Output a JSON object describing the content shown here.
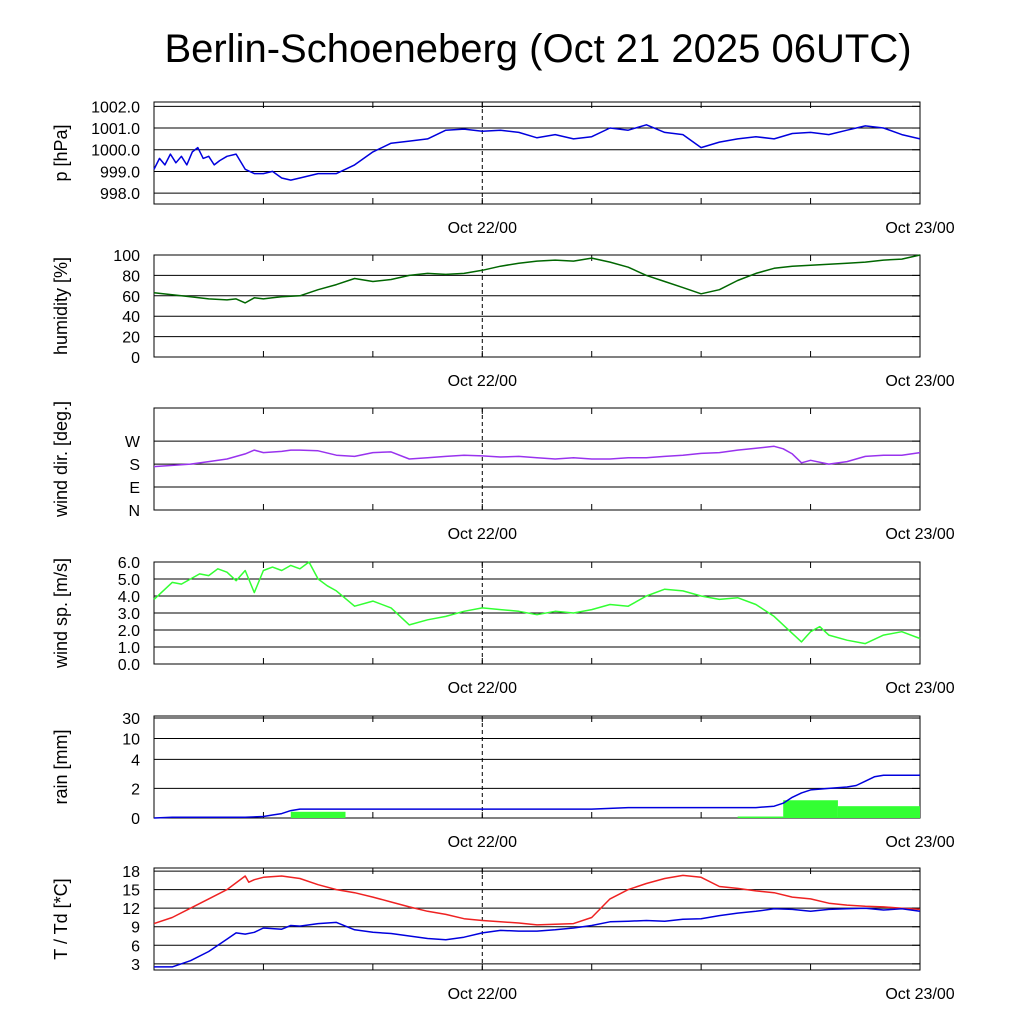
{
  "colors": {
    "pressure": "#0000dd",
    "humidity": "#006600",
    "wind_dir": "#9933ee",
    "wind_speed": "#33ff33",
    "rain_bar": "#33ff33",
    "rain_line": "#0000dd",
    "temperature": "#ee2222",
    "dewpoint": "#0000dd"
  },
  "chart_data": {
    "title": "Berlin-Schoeneberg (Oct 21 2025 06UTC)",
    "type": "line",
    "x_unit": "hours since Oct 21 06UTC",
    "xlim": [
      0,
      42
    ],
    "x_ticks": [
      {
        "x": 18,
        "label": "Oct 22/00"
      },
      {
        "x": 42,
        "label": "Oct 23/00"
      }
    ],
    "panels": [
      {
        "id": "pressure",
        "type": "line",
        "ylabel": "p [hPa]",
        "ylim": [
          997.5,
          1002.2
        ],
        "yticks": [
          998.0,
          999.0,
          1000.0,
          1001.0,
          1002.0
        ],
        "ytick_labels": [
          "998.0",
          "999.0",
          "1000.0",
          "1001.0",
          "1002.0"
        ],
        "series": [
          {
            "name": "pressure",
            "color_key": "pressure",
            "x": [
              0,
              0.3,
              0.6,
              0.9,
              1.2,
              1.5,
              1.8,
              2.1,
              2.4,
              2.7,
              3,
              3.3,
              3.6,
              4,
              4.5,
              5,
              5.5,
              6,
              6.5,
              7,
              7.5,
              8,
              9,
              10,
              11,
              12,
              13,
              14,
              15,
              16,
              17,
              18,
              19,
              20,
              21,
              22,
              23,
              24,
              25,
              26,
              27,
              28,
              29,
              30,
              31,
              32,
              33,
              34,
              35,
              36,
              37,
              38,
              39,
              40,
              41,
              42
            ],
            "y": [
              999.1,
              999.6,
              999.3,
              999.8,
              999.4,
              999.7,
              999.3,
              999.9,
              1000.1,
              999.6,
              999.7,
              999.3,
              999.5,
              999.7,
              999.8,
              999.1,
              998.9,
              998.9,
              999.0,
              998.7,
              998.6,
              998.7,
              998.9,
              998.9,
              999.3,
              999.9,
              1000.3,
              1000.4,
              1000.5,
              1000.9,
              1000.95,
              1000.85,
              1000.9,
              1000.8,
              1000.55,
              1000.7,
              1000.5,
              1000.6,
              1001.0,
              1000.9,
              1001.15,
              1000.8,
              1000.7,
              1000.1,
              1000.35,
              1000.5,
              1000.6,
              1000.5,
              1000.75,
              1000.8,
              1000.7,
              1000.9,
              1001.1,
              1001.0,
              1000.7,
              1000.5
            ]
          }
        ]
      },
      {
        "id": "humidity",
        "type": "line",
        "ylabel": "humidity [%]",
        "ylim": [
          0,
          100
        ],
        "yticks": [
          0,
          20,
          40,
          60,
          80,
          100
        ],
        "ytick_labels": [
          "0",
          "20",
          "40",
          "60",
          "80",
          "100"
        ],
        "series": [
          {
            "name": "humidity",
            "color_key": "humidity",
            "x": [
              0,
              1,
              2,
              3,
              4,
              4.5,
              5,
              5.5,
              6,
              6.5,
              7,
              8,
              9,
              10,
              11,
              12,
              13,
              14,
              15,
              16,
              17,
              18,
              19,
              20,
              21,
              22,
              23,
              24,
              25,
              26,
              27,
              28,
              29,
              30,
              31,
              32,
              33,
              34,
              35,
              36,
              37,
              38,
              39,
              40,
              41,
              42
            ],
            "y": [
              63,
              61,
              59,
              57,
              56,
              57,
              53,
              58,
              57,
              58,
              59,
              60,
              66,
              71,
              77,
              74,
              76,
              80,
              82,
              81,
              82,
              85,
              89,
              92,
              94,
              95,
              94,
              97,
              93,
              88,
              80,
              74,
              68,
              62,
              66,
              75,
              82,
              87,
              89,
              90,
              91,
              92,
              93,
              95,
              96,
              100
            ]
          }
        ]
      },
      {
        "id": "wind_dir",
        "type": "line",
        "ylabel": "wind dir. [deg.]",
        "ylim": [
          0,
          400
        ],
        "yticks": [
          0,
          90,
          180,
          270
        ],
        "ytick_labels": [
          "N",
          "E",
          "S",
          "W"
        ],
        "series": [
          {
            "name": "wind direction",
            "color_key": "wind_dir",
            "x": [
              0,
              1,
              2,
              3,
              4,
              5,
              5.5,
              6,
              7,
              7.5,
              8,
              9,
              10,
              11,
              12,
              13,
              14,
              15,
              16,
              17,
              18,
              19,
              20,
              21,
              22,
              23,
              24,
              25,
              26,
              27,
              28,
              29,
              30,
              31,
              32,
              33,
              34,
              34.5,
              35,
              35.5,
              36,
              37,
              38,
              39,
              40,
              41,
              42
            ],
            "y": [
              170,
              175,
              180,
              190,
              200,
              220,
              235,
              225,
              230,
              235,
              235,
              232,
              215,
              210,
              225,
              228,
              200,
              205,
              210,
              215,
              212,
              208,
              210,
              205,
              200,
              205,
              200,
              200,
              205,
              205,
              210,
              215,
              222,
              225,
              235,
              242,
              250,
              240,
              220,
              185,
              195,
              180,
              190,
              210,
              215,
              215,
              225
            ]
          }
        ]
      },
      {
        "id": "wind_speed",
        "type": "line",
        "ylabel": "wind sp. [m/s]",
        "ylim": [
          0,
          6
        ],
        "yticks": [
          0,
          1,
          2,
          3,
          4,
          5,
          6
        ],
        "ytick_labels": [
          "0.0",
          "1.0",
          "2.0",
          "3.0",
          "4.0",
          "5.0",
          "6.0"
        ],
        "series": [
          {
            "name": "wind speed",
            "color_key": "wind_speed",
            "x": [
              0,
              0.5,
              1,
              1.5,
              2,
              2.5,
              3,
              3.5,
              4,
              4.5,
              5,
              5.5,
              6,
              6.5,
              7,
              7.5,
              8,
              8.5,
              9,
              9.5,
              10,
              11,
              12,
              13,
              14,
              15,
              16,
              17,
              18,
              19,
              20,
              21,
              22,
              23,
              24,
              25,
              26,
              27,
              28,
              29,
              30,
              31,
              32,
              33,
              34,
              35,
              35.5,
              36,
              36.5,
              37,
              38,
              39,
              40,
              41,
              42
            ],
            "y": [
              3.8,
              4.3,
              4.8,
              4.7,
              5.0,
              5.3,
              5.2,
              5.6,
              5.4,
              4.9,
              5.5,
              4.2,
              5.5,
              5.7,
              5.5,
              5.8,
              5.6,
              6.0,
              5.0,
              4.6,
              4.3,
              3.4,
              3.7,
              3.3,
              2.3,
              2.6,
              2.8,
              3.1,
              3.3,
              3.2,
              3.1,
              2.9,
              3.1,
              3.0,
              3.2,
              3.5,
              3.4,
              4.0,
              4.4,
              4.3,
              4.0,
              3.8,
              3.9,
              3.5,
              2.8,
              1.8,
              1.3,
              1.9,
              2.2,
              1.7,
              1.4,
              1.2,
              1.7,
              1.9,
              1.5
            ]
          }
        ]
      },
      {
        "id": "rain",
        "type": "bar",
        "ylabel": "rain [mm]",
        "ytick_labels": [
          "0",
          "2",
          "4",
          "10",
          "30"
        ],
        "bars": [
          {
            "x0": 7.5,
            "x1": 10.5,
            "value": 0.42
          },
          {
            "x0": 34.5,
            "x1": 37.5,
            "value": 1.2
          },
          {
            "x0": 37.5,
            "x1": 42,
            "value": 0.8
          },
          {
            "x0": 32,
            "x1": 34.5,
            "value": 0.1
          }
        ],
        "series": [
          {
            "name": "accumulated rain",
            "color_key": "rain_line",
            "x": [
              0,
              1,
              2,
              3,
              4,
              5,
              6,
              6.5,
              7,
              7.5,
              8,
              10,
              12,
              14,
              16,
              18,
              20,
              22,
              24,
              26,
              28,
              30,
              32,
              33,
              34,
              34.5,
              35,
              35.5,
              36,
              37,
              38,
              38.5,
              39,
              39.5,
              40,
              41,
              42
            ],
            "y": [
              0,
              0.05,
              0.05,
              0.05,
              0.05,
              0.05,
              0.1,
              0.2,
              0.3,
              0.5,
              0.6,
              0.6,
              0.6,
              0.6,
              0.6,
              0.6,
              0.6,
              0.6,
              0.6,
              0.7,
              0.7,
              0.7,
              0.7,
              0.7,
              0.8,
              1.0,
              1.4,
              1.7,
              1.9,
              2.0,
              2.1,
              2.2,
              2.5,
              2.8,
              2.9,
              2.9,
              2.9
            ]
          }
        ]
      },
      {
        "id": "temperature",
        "type": "line",
        "ylabel": "T / Td [*C]",
        "ylim": [
          2,
          18.5
        ],
        "yticks": [
          3,
          6,
          9,
          12,
          15,
          18
        ],
        "ytick_labels": [
          "3",
          "6",
          "9",
          "12",
          "15",
          "18"
        ],
        "series": [
          {
            "name": "T",
            "color_key": "temperature",
            "x": [
              0,
              1,
              2,
              3,
              4,
              5,
              5.2,
              5.5,
              6,
              7,
              8,
              9,
              10,
              11,
              12,
              13,
              14,
              15,
              16,
              17,
              18,
              19,
              20,
              21,
              22,
              23,
              24,
              25,
              26,
              27,
              28,
              29,
              30,
              31,
              32,
              33,
              34,
              35,
              36,
              37,
              38,
              39,
              40,
              41,
              42
            ],
            "y": [
              9.5,
              10.5,
              12,
              13.5,
              15,
              17.2,
              16.2,
              16.6,
              17.0,
              17.2,
              16.8,
              15.8,
              15,
              14.5,
              13.8,
              13,
              12.2,
              11.5,
              11,
              10.3,
              10.0,
              9.8,
              9.6,
              9.3,
              9.4,
              9.5,
              10.5,
              13.5,
              15,
              16,
              16.8,
              17.3,
              17,
              15.5,
              15.2,
              14.8,
              14.5,
              13.8,
              13.5,
              12.8,
              12.5,
              12.3,
              12.2,
              12.0,
              11.8
            ]
          },
          {
            "name": "Td",
            "color_key": "dewpoint",
            "x": [
              0,
              1,
              2,
              3,
              4,
              4.5,
              5,
              5.5,
              6,
              7,
              7.5,
              8,
              9,
              10,
              11,
              12,
              13,
              14,
              15,
              16,
              17,
              18,
              19,
              20,
              21,
              22,
              23,
              24,
              25,
              26,
              27,
              28,
              29,
              30,
              31,
              32,
              33,
              34,
              35,
              36,
              37,
              38,
              39,
              40,
              41,
              42
            ],
            "y": [
              2.5,
              2.5,
              3.5,
              5,
              7,
              8,
              7.8,
              8.1,
              8.8,
              8.6,
              9.2,
              9.1,
              9.5,
              9.7,
              8.5,
              8.1,
              7.9,
              7.5,
              7.1,
              6.9,
              7.3,
              8.0,
              8.4,
              8.3,
              8.3,
              8.5,
              8.8,
              9.2,
              9.8,
              9.9,
              10.0,
              9.9,
              10.2,
              10.3,
              10.8,
              11.2,
              11.5,
              11.9,
              11.8,
              11.5,
              11.8,
              11.9,
              12.0,
              11.7,
              11.9,
              11.5
            ]
          }
        ]
      }
    ]
  }
}
